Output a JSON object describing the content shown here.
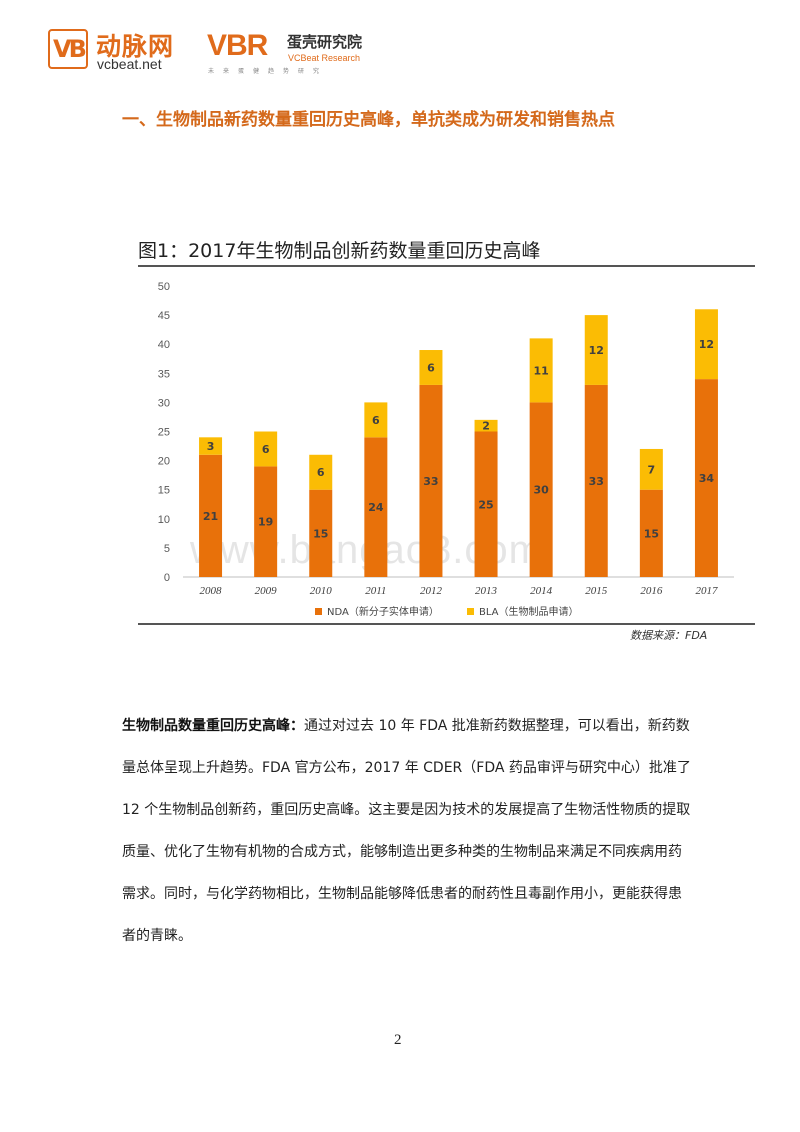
{
  "header": {
    "brand_logo_text": "VB",
    "brand_cn": "动脉网",
    "brand_url": "vcbeat.net",
    "vbr_logo_text": "VBR",
    "vbr_cn": "蛋壳研究院",
    "vbr_en": "VCBeat Research",
    "vbr_tagline": "未来蛋健趋势研究"
  },
  "section_heading": "一、生物制品新药数量重回历史高峰，单抗类成为研发和销售热点",
  "figure": {
    "title": "图1：2017年生物制品创新药数量重回历史高峰",
    "source": "数据来源：FDA",
    "watermark": "www.bangao8.com"
  },
  "chart_data": {
    "type": "bar",
    "stacked": true,
    "categories": [
      "2008",
      "2009",
      "2010",
      "2011",
      "2012",
      "2013",
      "2014",
      "2015",
      "2016",
      "2017"
    ],
    "series": [
      {
        "name": "NDA（新分子实体申请）",
        "values": [
          21,
          19,
          15,
          24,
          33,
          25,
          30,
          33,
          15,
          34
        ],
        "color": "#e8710a"
      },
      {
        "name": "BLA（生物制品申请）",
        "values": [
          3,
          6,
          6,
          6,
          6,
          2,
          11,
          12,
          7,
          12
        ],
        "color": "#fbbc04"
      }
    ],
    "yticks": [
      0,
      5,
      10,
      15,
      20,
      25,
      30,
      35,
      40,
      45,
      50
    ],
    "ylim": [
      0,
      50
    ],
    "grid": false,
    "legend_position": "bottom"
  },
  "paragraph": {
    "lead": "生物制品数量重回历史高峰：",
    "body": "通过对过去 10 年 FDA 批准新药数据整理，可以看出，新药数量总体呈现上升趋势。FDA 官方公布，2017 年 CDER（FDA 药品审评与研究中心）批准了 12 个生物制品创新药，重回历史高峰。这主要是因为技术的发展提高了生物活性物质的提取质量、优化了生物有机物的合成方式，能够制造出更多种类的生物制品来满足不同疾病用药需求。同时，与化学药物相比，生物制品能够降低患者的耐药性且毒副作用小，更能获得患者的青睐。"
  },
  "page_number": "2"
}
